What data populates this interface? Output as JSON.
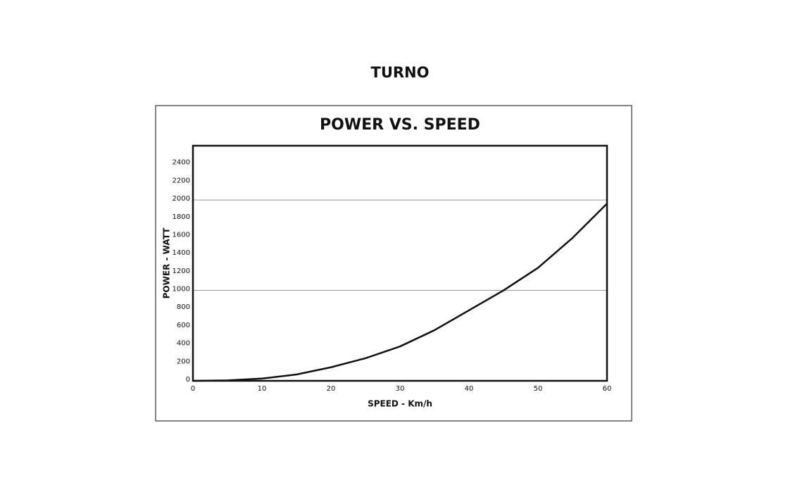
{
  "header": {
    "title": "TURNO"
  },
  "chart_data": {
    "type": "line",
    "title": "POWER VS. SPEED",
    "x_label": "SPEED - Km/h",
    "y_label": "POWER - WATT",
    "x": [
      0,
      5,
      10,
      15,
      20,
      25,
      30,
      35,
      40,
      45,
      50,
      55,
      60
    ],
    "values": [
      0,
      5,
      25,
      70,
      150,
      250,
      380,
      560,
      780,
      1000,
      1250,
      1580,
      1960
    ],
    "color": "#111111",
    "xlim": [
      0,
      60
    ],
    "xticks": [
      0,
      10,
      20,
      30,
      40,
      50,
      60
    ],
    "ylim": [
      0,
      2600
    ],
    "yticks": [
      0,
      200,
      400,
      600,
      800,
      1000,
      1200,
      1400,
      1600,
      1800,
      2000,
      2200,
      2400
    ],
    "grid_values": [
      1000,
      2000
    ]
  }
}
